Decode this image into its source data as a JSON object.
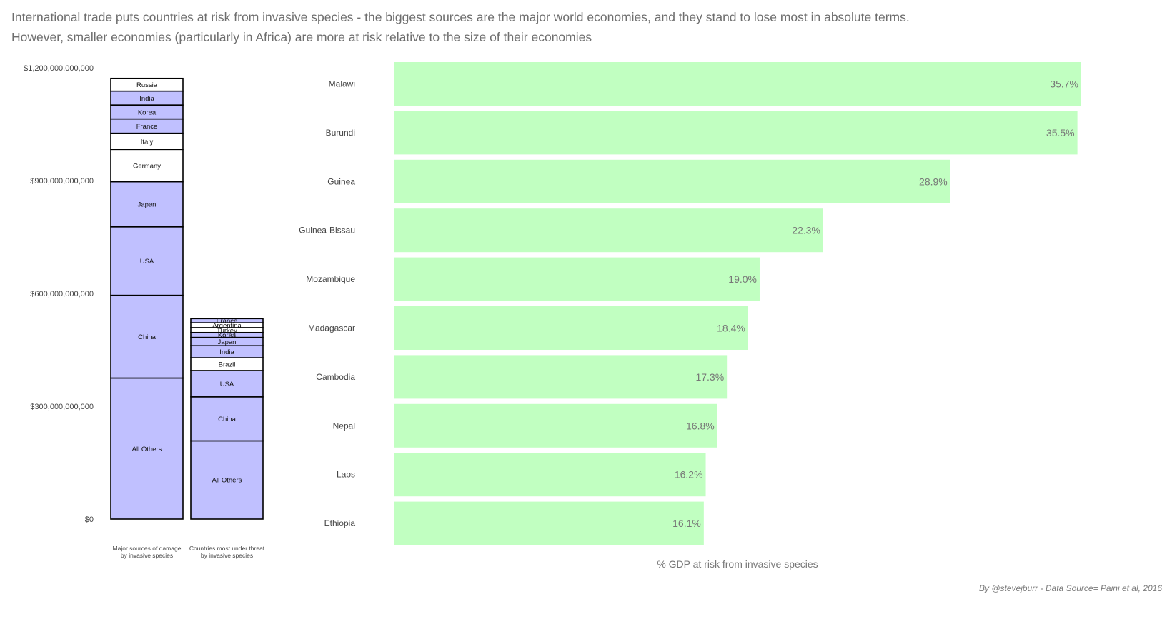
{
  "title_lines": [
    "International trade puts countries at risk from invasive species - the biggest sources are the major world economies, and they stand to lose most in absolute terms.",
    "However, smaller economies (particularly in Africa) are more at risk relative to the size of their economies"
  ],
  "credit": "By @stevejburr - Data Source= Paini et al, 2016",
  "colors": {
    "stack_fill": "#c0c0ff",
    "stack_highlight": "#ffffff",
    "stack_border": "#000000",
    "bar_fill": "#c1ffc1",
    "text": "#444444",
    "value_label": "#777777"
  },
  "chart_data": [
    {
      "type": "bar",
      "stacked": true,
      "ylim": [
        0,
        1200000000000
      ],
      "y_ticks": [
        0,
        300000000000,
        600000000000,
        900000000000,
        1200000000000
      ],
      "y_tick_labels": [
        "$0",
        "$300,000,000,000",
        "$600,000,000,000",
        "$900,000,000,000",
        "$1,200,000,000,000"
      ],
      "grid": false,
      "categories": [
        "Major sources of damage\nby invasive species",
        "Countries most under threat\nby invasive species"
      ],
      "stacks": [
        {
          "category": "Major sources of damage\nby invasive species",
          "segments": [
            {
              "name": "All Others",
              "value": 375000000000,
              "highlight": false
            },
            {
              "name": "China",
              "value": 220000000000,
              "highlight": false
            },
            {
              "name": "USA",
              "value": 182000000000,
              "highlight": false
            },
            {
              "name": "Japan",
              "value": 120000000000,
              "highlight": false
            },
            {
              "name": "Germany",
              "value": 86000000000,
              "highlight": true
            },
            {
              "name": "Italy",
              "value": 43000000000,
              "highlight": true
            },
            {
              "name": "France",
              "value": 38000000000,
              "highlight": false
            },
            {
              "name": "Korea",
              "value": 37000000000,
              "highlight": false
            },
            {
              "name": "India",
              "value": 37000000000,
              "highlight": false
            },
            {
              "name": "Russia",
              "value": 34000000000,
              "highlight": true
            }
          ]
        },
        {
          "category": "Countries most under threat\nby invasive species",
          "segments": [
            {
              "name": "All Others",
              "value": 208000000000,
              "highlight": false
            },
            {
              "name": "China",
              "value": 117000000000,
              "highlight": false
            },
            {
              "name": "USA",
              "value": 70000000000,
              "highlight": false
            },
            {
              "name": "Brazil",
              "value": 34000000000,
              "highlight": true
            },
            {
              "name": "India",
              "value": 32000000000,
              "highlight": false
            },
            {
              "name": "Japan",
              "value": 22000000000,
              "highlight": false
            },
            {
              "name": "Korea",
              "value": 13000000000,
              "highlight": false
            },
            {
              "name": "Turkey",
              "value": 13000000000,
              "highlight": true
            },
            {
              "name": "Argentina",
              "value": 13000000000,
              "highlight": true
            },
            {
              "name": "France",
              "value": 11000000000,
              "highlight": false
            }
          ]
        }
      ]
    },
    {
      "type": "bar",
      "orientation": "horizontal",
      "categories": [
        "Malawi",
        "Burundi",
        "Guinea",
        "Guinea-Bissau",
        "Mozambique",
        "Madagascar",
        "Cambodia",
        "Nepal",
        "Laos",
        "Ethiopia"
      ],
      "values": [
        35.7,
        35.5,
        28.9,
        22.3,
        19.0,
        18.4,
        17.3,
        16.8,
        16.2,
        16.1
      ],
      "value_labels": [
        "35.7%",
        "35.5%",
        "28.9%",
        "22.3%",
        "19.0%",
        "18.4%",
        "17.3%",
        "16.8%",
        "16.2%",
        "16.1%"
      ],
      "xlabel": "% GDP at risk from invasive species",
      "xlim": [
        0,
        35.7
      ],
      "grid": false
    }
  ]
}
